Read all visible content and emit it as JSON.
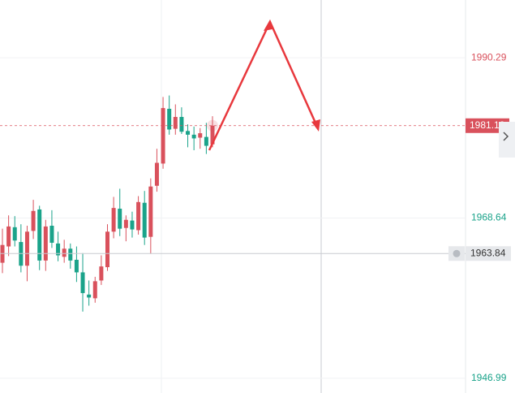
{
  "chart_data": {
    "type": "candlestick",
    "open": [
      1962.6,
      1964.8,
      1967.4,
      1965.4,
      1962.2,
      1966.9,
      1969.8,
      1962.9,
      1967.6,
      1965.2,
      1963.4,
      1964.5,
      1963.0,
      1961.3,
      1958.3,
      1957.8,
      1960.2,
      1962.0,
      1966.8,
      1969.9,
      1967.3,
      1968.3,
      1967.0,
      1970.7,
      1966.1,
      1973.0,
      1976.0,
      1983.4,
      1980.7,
      1982.3,
      1980.4,
      1979.9,
      1979.5,
      1979.6,
      1978.6
    ],
    "high": [
      1967.2,
      1969.0,
      1968.9,
      1967.8,
      1967.6,
      1971.1,
      1970.3,
      1968.4,
      1969.7,
      1966.8,
      1965.7,
      1965.2,
      1964.8,
      1963.9,
      1960.2,
      1960.7,
      1963.6,
      1967.8,
      1971.5,
      1972.6,
      1969.0,
      1969.5,
      1971.6,
      1972.3,
      1974.0,
      1978.0,
      1985.0,
      1985.2,
      1984.0,
      1983.6,
      1981.3,
      1981.0,
      1980.8,
      1981.5,
      1982.4
    ],
    "low": [
      1961.2,
      1963.5,
      1964.8,
      1961.3,
      1960.1,
      1965.8,
      1961.6,
      1961.5,
      1964.6,
      1962.8,
      1962.6,
      1961.8,
      1960.0,
      1956.0,
      1956.8,
      1957.2,
      1959.6,
      1961.5,
      1965.9,
      1966.2,
      1965.5,
      1966.0,
      1966.4,
      1965.0,
      1963.8,
      1972.2,
      1975.3,
      1979.9,
      1979.9,
      1980.0,
      1978.2,
      1977.8,
      1978.0,
      1977.3,
      1978.2
    ],
    "close": [
      1965.0,
      1967.5,
      1965.6,
      1962.2,
      1966.8,
      1969.6,
      1962.9,
      1967.5,
      1965.3,
      1963.6,
      1964.5,
      1962.9,
      1961.3,
      1958.5,
      1957.9,
      1960.1,
      1962.1,
      1966.8,
      1970.0,
      1967.2,
      1968.4,
      1967.1,
      1970.8,
      1966.0,
      1972.9,
      1976.1,
      1983.5,
      1980.6,
      1982.3,
      1980.3,
      1979.9,
      1979.4,
      1980.1,
      1978.4,
      1981.12
    ],
    "up_color": "#d9515c",
    "down_color": "#1aa38a",
    "ylim": [
      1945.0,
      1998.1
    ],
    "yticks": [
      1990.29,
      1968.64,
      1946.99
    ],
    "last_price": 1981.12,
    "crosshair_price": 1963.84
  }
}
